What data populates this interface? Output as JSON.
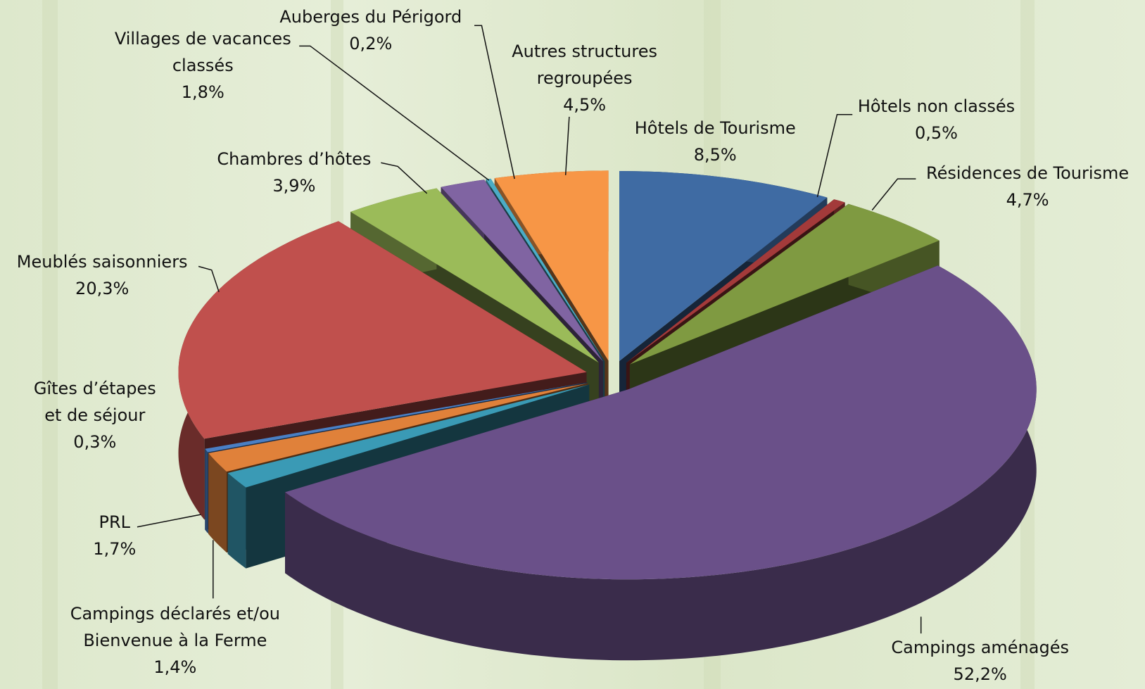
{
  "chart_data": {
    "type": "pie3d",
    "categories": [
      "Hôtels de Tourisme",
      "Hôtels non classés",
      "Résidences de Tourisme",
      "Campings aménagés",
      "Campings déclarés et/ou Bienvenue à la Ferme",
      "PRL",
      "Gîtes d’étapes et de séjour",
      "Meublés saisonniers",
      "Chambres d’hôtes",
      "Villages de vacances classés",
      "Auberges du Périgord",
      "Autres structures regroupées"
    ],
    "values": [
      8.5,
      0.5,
      4.7,
      52.2,
      1.4,
      1.7,
      0.3,
      20.3,
      3.9,
      1.8,
      0.2,
      4.5
    ],
    "value_labels": [
      "8,5%",
      "0,5%",
      "4,7%",
      "52,2%",
      "1,4%",
      "1,7%",
      "0,3%",
      "20,3%",
      "3,9%",
      "1,8%",
      "0,2%",
      "4,5%"
    ],
    "colors": [
      "#3f6ba3",
      "#a33a3a",
      "#7f9a41",
      "#6a5089",
      "#3a9ab5",
      "#e0813a",
      "#4a7fc4",
      "#c0504d",
      "#9bbb59",
      "#8064a2",
      "#4bacc6",
      "#f79646"
    ]
  }
}
